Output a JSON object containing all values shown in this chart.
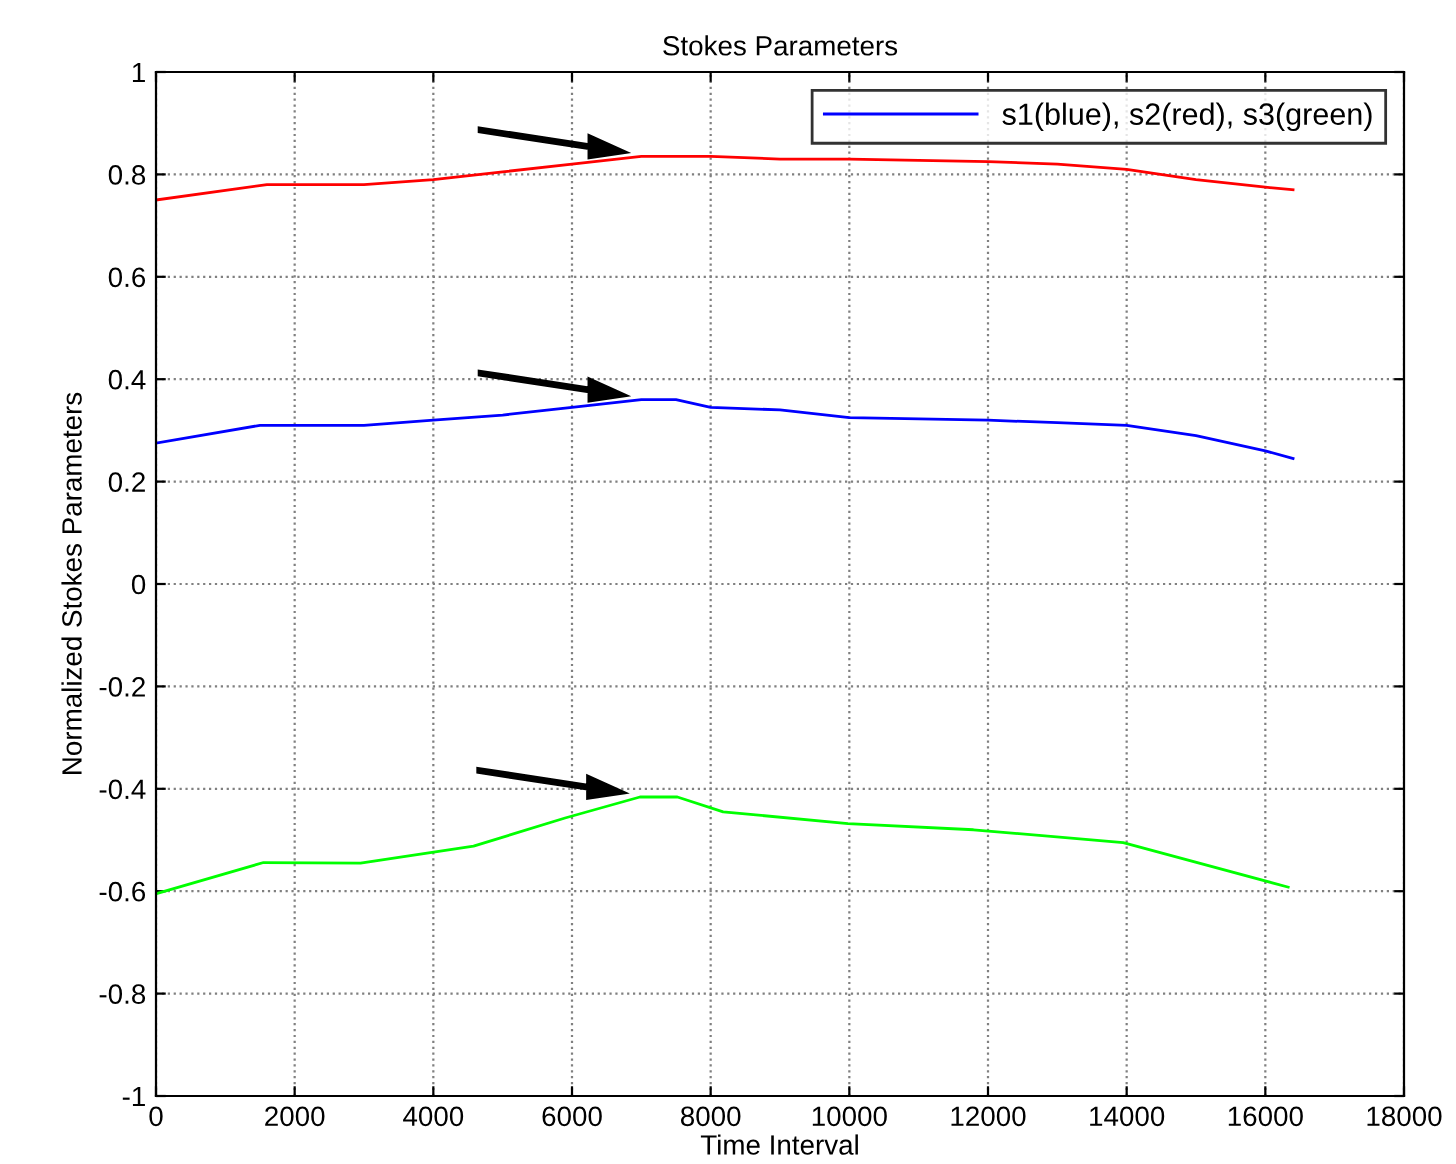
{
  "chart_data": {
    "type": "line",
    "title": "Stokes Parameters",
    "xlabel": "Time Interval",
    "ylabel": "Normalized Stokes Parameters",
    "series": [
      {
        "name": "s1(blue), s2(red), s3(green)",
        "color": "#0000ff",
        "x": [
          0,
          1500,
          3000,
          4000,
          5000,
          6000,
          7000,
          7500,
          8000,
          9000,
          10000,
          12000,
          13000,
          14000,
          15000,
          16000,
          16400
        ],
        "values": [
          0.275,
          0.31,
          0.31,
          0.32,
          0.33,
          0.345,
          0.36,
          0.36,
          0.345,
          0.34,
          0.325,
          0.32,
          0.315,
          0.31,
          0.29,
          0.26,
          0.245
        ]
      },
      {
        "color": "#ff0000",
        "x": [
          0,
          1600,
          3000,
          4000,
          5000,
          6000,
          7000,
          8000,
          9000,
          10000,
          12000,
          13000,
          14000,
          15000,
          16000,
          16400
        ],
        "values": [
          0.75,
          0.78,
          0.78,
          0.79,
          0.805,
          0.82,
          0.835,
          0.835,
          0.83,
          0.83,
          0.825,
          0.82,
          0.81,
          0.79,
          0.775,
          0.77
        ]
      },
      {
        "color": "#00ff00",
        "x": [
          0,
          1550,
          2950,
          4580,
          5900,
          6980,
          7520,
          8180,
          9980,
          11790,
          13950,
          16330
        ],
        "values": [
          -0.605,
          -0.544,
          -0.545,
          -0.512,
          -0.457,
          -0.416,
          -0.416,
          -0.445,
          -0.468,
          -0.48,
          -0.505,
          -0.592
        ]
      }
    ],
    "xlim": [
      0,
      18000
    ],
    "xticks": [
      0,
      2000,
      4000,
      6000,
      8000,
      10000,
      12000,
      14000,
      16000,
      18000
    ],
    "ylim": [
      -1,
      1
    ],
    "yticks": [
      -1,
      -0.8,
      -0.6,
      -0.4,
      -0.2,
      0,
      0.2,
      0.4,
      0.6,
      0.8,
      1
    ],
    "grid": true,
    "legend": "top right",
    "line_style": "solid",
    "marker": "none"
  }
}
